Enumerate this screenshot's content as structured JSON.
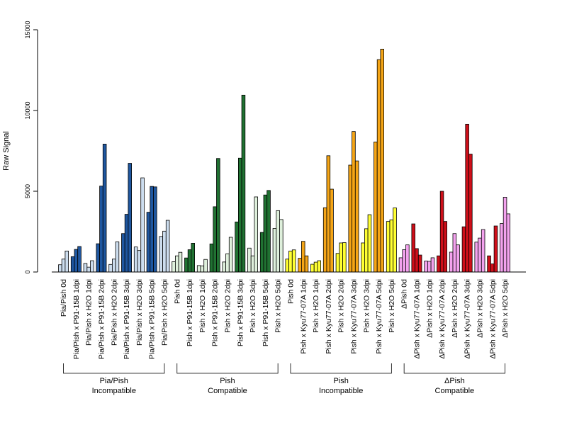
{
  "chart_data": {
    "type": "bar",
    "ylabel": "Raw Signal",
    "ylim": [
      0,
      15000
    ],
    "yticks": [
      0,
      5000,
      10000,
      15000
    ],
    "grid": false,
    "groups": [
      {
        "label": "Pia/Pish 0d",
        "color": "#ccddee",
        "values": [
          450,
          800,
          1300
        ]
      },
      {
        "label": "Pia/Pish x P91-15B 1dpi",
        "color": "#1f57a0",
        "values": [
          950,
          1400,
          1580
        ]
      },
      {
        "label": "Pia/Pish x H2O 1dpi",
        "color": "#ccddee",
        "values": [
          530,
          300,
          700
        ]
      },
      {
        "label": "Pia/Pish x P91-15B 2dpi",
        "color": "#1f57a0",
        "values": [
          1750,
          5320,
          7920
        ]
      },
      {
        "label": "Pia/Pish x H2O 2dpi",
        "color": "#ccddee",
        "values": [
          470,
          800,
          1870
        ]
      },
      {
        "label": "Pia/Pish x P91-15B 3dpi",
        "color": "#1f57a0",
        "values": [
          2380,
          3570,
          6730
        ]
      },
      {
        "label": "Pia/Pish x H2O 3dpi",
        "color": "#ccddee",
        "values": [
          1550,
          1330,
          5830
        ]
      },
      {
        "label": "Pia/Pish x P91-15B 5dpi",
        "color": "#1f57a0",
        "values": [
          3700,
          5300,
          5270
        ]
      },
      {
        "label": "Pia/Pish x H2O 5dpi",
        "color": "#ccddee",
        "values": [
          2200,
          2530,
          3200
        ]
      },
      {
        "label": "Pish 0d",
        "color": "#dff0dc",
        "values": [
          640,
          1000,
          1220
        ]
      },
      {
        "label": "Pish x P91-15B 1dpi",
        "color": "#207232",
        "values": [
          870,
          1380,
          1780
        ]
      },
      {
        "label": "Pish x H2O 1dpi",
        "color": "#dff0dc",
        "values": [
          400,
          380,
          780
        ]
      },
      {
        "label": "Pish x P91-15B 2dpi",
        "color": "#207232",
        "values": [
          1740,
          4040,
          7030
        ]
      },
      {
        "label": "Pish x H2O 2dpi",
        "color": "#dff0dc",
        "values": [
          620,
          1130,
          2150
        ]
      },
      {
        "label": "Pish x P91-15B 3dpi",
        "color": "#207232",
        "values": [
          3100,
          7050,
          10950
        ]
      },
      {
        "label": "Pish x H2O 3dpi",
        "color": "#dff0dc",
        "values": [
          1480,
          1000,
          4650
        ]
      },
      {
        "label": "Pish x P91-15B 5dpi",
        "color": "#207232",
        "values": [
          2450,
          4770,
          5050
        ]
      },
      {
        "label": "Pish x H2O 5dpi",
        "color": "#dff0dc",
        "values": [
          2700,
          3800,
          3250
        ]
      },
      {
        "label": "Pish 0d",
        "color": "#ffff33",
        "values": [
          800,
          1300,
          1370
        ]
      },
      {
        "label": "Pish x Kyu77-07A 1dpi",
        "color": "#f5a516",
        "values": [
          850,
          1900,
          1000
        ]
      },
      {
        "label": "Pish x H2O 1dpi",
        "color": "#ffff33",
        "values": [
          480,
          610,
          700
        ]
      },
      {
        "label": "Pish x Kyu77-07A 2dpi",
        "color": "#f5a516",
        "values": [
          3980,
          7200,
          5130
        ]
      },
      {
        "label": "Pish x H2O 2dpi",
        "color": "#ffff33",
        "values": [
          1150,
          1800,
          1820
        ]
      },
      {
        "label": "Pish x Kyu77-07A 3dpi",
        "color": "#f5a516",
        "values": [
          6620,
          8700,
          6880
        ]
      },
      {
        "label": "Pish x H2O 3dpi",
        "color": "#ffff33",
        "values": [
          1800,
          2680,
          3550
        ]
      },
      {
        "label": "Pish x Kyu77-07A 5dpi",
        "color": "#f5a516",
        "values": [
          8050,
          13150,
          13800
        ]
      },
      {
        "label": "Pish x H2O 5dpi",
        "color": "#ffff33",
        "values": [
          3130,
          3230,
          3970
        ]
      },
      {
        "label": "ΔPish 0d",
        "color": "#f3a2ee",
        "values": [
          880,
          1380,
          1680
        ]
      },
      {
        "label": "ΔPish x Kyu77-07A 1dpi",
        "color": "#cf0f1a",
        "values": [
          2980,
          1450,
          1050
        ]
      },
      {
        "label": "ΔPish x H2O 1dpi",
        "color": "#f3a2ee",
        "values": [
          680,
          660,
          880
        ]
      },
      {
        "label": "ΔPish x Kyu77-07A 2dpi",
        "color": "#cf0f1a",
        "values": [
          1000,
          5000,
          3130
        ]
      },
      {
        "label": "ΔPish x H2O 2dpi",
        "color": "#f3a2ee",
        "values": [
          1230,
          2380,
          1680
        ]
      },
      {
        "label": "ΔPish x Kyu77-07A 3dpi",
        "color": "#cf0f1a",
        "values": [
          2800,
          9150,
          7300
        ]
      },
      {
        "label": "ΔPish x H2O 3dpi",
        "color": "#f3a2ee",
        "values": [
          1850,
          2100,
          2630
        ]
      },
      {
        "label": "ΔPish x Kyu77-07A 5dpi",
        "color": "#cf0f1a",
        "values": [
          1000,
          500,
          2850
        ]
      },
      {
        "label": "ΔPish x H2O 5dpi",
        "color": "#f3a2ee",
        "values": [
          3000,
          4630,
          3600
        ]
      }
    ],
    "categories_groups": [
      {
        "line1": "Pia/Pish",
        "line2": "Incompatible",
        "start": 0,
        "end": 8
      },
      {
        "line1": "Pish",
        "line2": "Compatible",
        "start": 9,
        "end": 17
      },
      {
        "line1": "Pish",
        "line2": "Incompatible",
        "start": 18,
        "end": 26
      },
      {
        "line1": "ΔPish",
        "line2": "Compatible",
        "start": 27,
        "end": 35
      }
    ]
  }
}
